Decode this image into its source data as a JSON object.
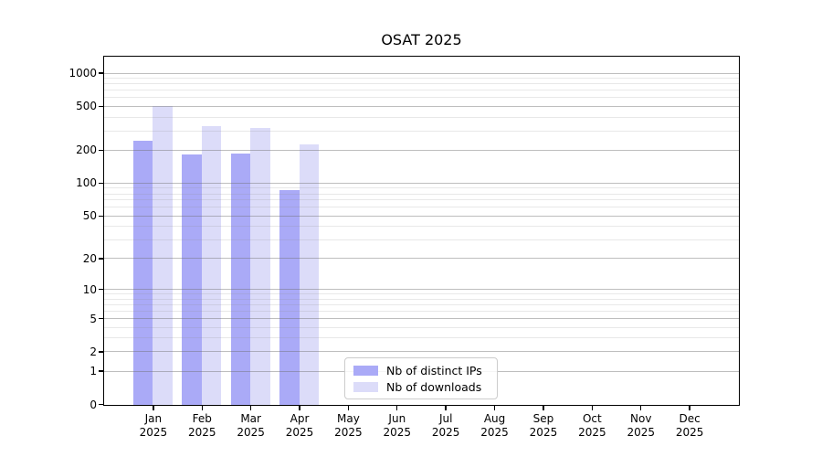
{
  "chart_data": {
    "type": "bar",
    "title": "OSAT 2025",
    "xlabel": "",
    "ylabel": "",
    "year": "2025",
    "categories": [
      "Jan",
      "Feb",
      "Mar",
      "Apr",
      "May",
      "Jun",
      "Jul",
      "Aug",
      "Sep",
      "Oct",
      "Nov",
      "Dec"
    ],
    "series": [
      {
        "name": "Nb of distinct IPs",
        "color": "#aaaaf7",
        "values": [
          245,
          185,
          190,
          88,
          null,
          null,
          null,
          null,
          null,
          null,
          null,
          null
        ]
      },
      {
        "name": "Nb of downloads",
        "color": "#dcdcf9",
        "values": [
          505,
          335,
          320,
          230,
          null,
          null,
          null,
          null,
          null,
          null,
          null,
          null
        ]
      }
    ],
    "y_scale": "log1p",
    "ylim": [
      0,
      1400
    ],
    "y_major_ticks": [
      1000,
      500,
      200,
      100,
      50,
      20,
      10,
      5,
      2,
      1,
      0
    ],
    "y_minor_ticks": [
      3,
      4,
      6,
      7,
      8,
      9,
      30,
      40,
      60,
      70,
      80,
      90,
      300,
      400,
      600,
      700,
      800,
      900
    ],
    "grid": "horizontal major+minor",
    "legend_position": "lower center"
  }
}
